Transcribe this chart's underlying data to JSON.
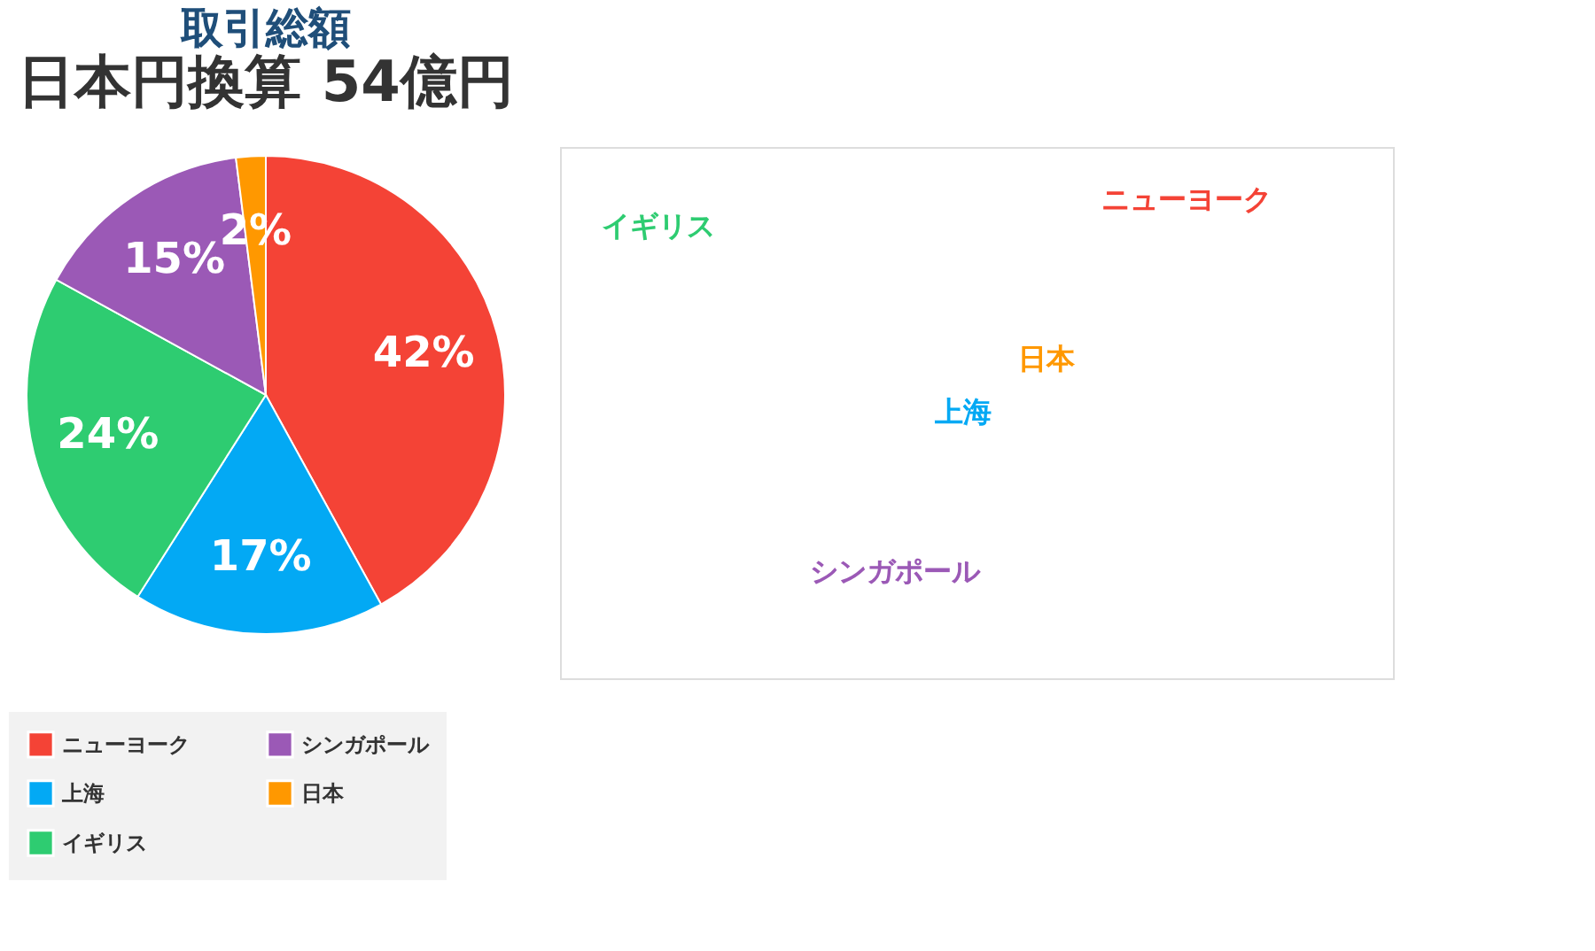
{
  "chart_data": [
    {
      "type": "pie",
      "title": "取引総額",
      "subtitle": "日本円換算 54億円",
      "categories": [
        "ニューヨーク",
        "上海",
        "イギリス",
        "シンガポール",
        "日本"
      ],
      "values": [
        42,
        17,
        24,
        15,
        2
      ],
      "value_labels": [
        "42%",
        "17%",
        "24%",
        "15%",
        "2%"
      ],
      "colors": [
        "#f44336",
        "#03a9f4",
        "#2ecc71",
        "#9b59b6",
        "#ff9800"
      ],
      "legend": "bottom"
    },
    {
      "type": "other",
      "categories": [
        "イギリス",
        "ニューヨーク",
        "日本",
        "上海",
        "シンガポール"
      ],
      "colors": [
        "#2ecc71",
        "#f44336",
        "#ff9800",
        "#03a9f4",
        "#9b59b6"
      ]
    }
  ]
}
